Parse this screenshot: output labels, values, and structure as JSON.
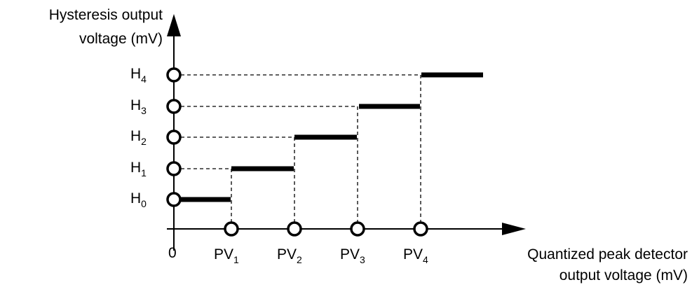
{
  "y_axis_label": {
    "line1": "Hysteresis output",
    "line2": "voltage (mV)"
  },
  "x_axis_label": {
    "line1": "Quantized peak detector",
    "line2": "output voltage (mV)"
  },
  "origin_label": "0",
  "y_levels": [
    {
      "base": "H",
      "sub": "0"
    },
    {
      "base": "H",
      "sub": "1"
    },
    {
      "base": "H",
      "sub": "2"
    },
    {
      "base": "H",
      "sub": "3"
    },
    {
      "base": "H",
      "sub": "4"
    }
  ],
  "x_thresholds": [
    {
      "base": "PV",
      "sub": "1"
    },
    {
      "base": "PV",
      "sub": "2"
    },
    {
      "base": "PV",
      "sub": "3"
    },
    {
      "base": "PV",
      "sub": "4"
    }
  ]
}
